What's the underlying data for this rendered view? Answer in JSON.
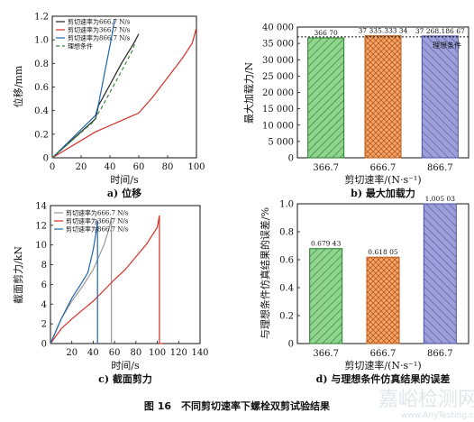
{
  "colors": {
    "blue": "#2166ac",
    "red": "#d73027",
    "black": "#222222",
    "grey": "#999999",
    "green": "#3a8a3a",
    "bar_green": "#8fd48f",
    "bar_orange": "#f5a56b",
    "bar_purple": "#9c9fd8"
  },
  "figure_caption": "图 16　不同剪切速率下螺栓双剪试验结果",
  "watermark": {
    "main": "嘉峪检测网",
    "url": "www.AnyTesting.com"
  },
  "chart_data": [
    {
      "id": "a",
      "type": "line",
      "subtitle": "a) 位移",
      "xlabel": "时间/s",
      "ylabel": "位移/mm",
      "xlim": [
        0,
        100
      ],
      "ylim": [
        0,
        1.2
      ],
      "xticks": [
        "0",
        "20",
        "40",
        "60",
        "80",
        "100"
      ],
      "yticks": [
        "0",
        "0.2",
        "0.4",
        "0.6",
        "0.8",
        "1.0",
        "1.2"
      ],
      "legend": "top-left",
      "series": [
        {
          "name": "剪切速率为666.7 N/s",
          "color": "#222222",
          "dash": "",
          "x": [
            0,
            30,
            32,
            40,
            48,
            56,
            60
          ],
          "y": [
            0,
            0.33,
            0.44,
            0.62,
            0.8,
            0.96,
            1.05
          ]
        },
        {
          "name": "剪切速率为366.7 N/s",
          "color": "#d73027",
          "dash": "",
          "x": [
            0,
            30,
            60,
            70,
            80,
            90,
            97,
            100
          ],
          "y": [
            0,
            0.22,
            0.38,
            0.52,
            0.68,
            0.84,
            0.97,
            1.1
          ]
        },
        {
          "name": "剪切速率为866.7 N/s",
          "color": "#2166ac",
          "dash": "",
          "x": [
            0,
            30,
            32,
            36,
            40,
            42,
            43
          ],
          "y": [
            0,
            0.36,
            0.45,
            0.7,
            0.95,
            1.08,
            1.17
          ]
        },
        {
          "name": "理想条件",
          "color": "#3a8a3a",
          "dash": "4,3",
          "x": [
            0,
            28,
            34,
            42,
            50,
            56,
            58
          ],
          "y": [
            0,
            0.3,
            0.42,
            0.6,
            0.78,
            0.92,
            1.0
          ]
        }
      ]
    },
    {
      "id": "b",
      "type": "bar",
      "subtitle": "b) 最大加载力",
      "xlabel": "剪切速率/(N·s⁻¹)",
      "ylabel": "最大加载力/N",
      "ylim": [
        0,
        40000
      ],
      "yticks": [
        "0",
        "5 000",
        "10 000",
        "15 000",
        "20 000",
        "25 000",
        "30 000",
        "35 000",
        "40 000"
      ],
      "categories": [
        "366.7",
        "666.7",
        "866.7"
      ],
      "values": [
        36670,
        37335.33334,
        37268.18667
      ],
      "data_labels": [
        "366 70",
        "37 335.333 34",
        "37 268.186 67"
      ],
      "reference": {
        "label": "理想条件",
        "value": 37000
      }
    },
    {
      "id": "c",
      "type": "line",
      "subtitle": "c) 截面剪力",
      "xlabel": "时间/s",
      "ylabel": "截面剪力/kN",
      "xlim": [
        0,
        140
      ],
      "ylim": [
        0,
        14
      ],
      "xticks": [
        "20",
        "40",
        "60",
        "80",
        "100",
        "120",
        "140"
      ],
      "yticks": [
        "0",
        "2",
        "4",
        "6",
        "8",
        "10",
        "12",
        "14"
      ],
      "legend": "top-left",
      "series": [
        {
          "name": "剪切速率为666.7 N/s",
          "color": "#999999",
          "dash": "",
          "x": [
            0,
            10,
            20,
            30,
            40,
            50,
            55,
            57,
            57
          ],
          "y": [
            0,
            2.5,
            4.3,
            5.8,
            7.5,
            10,
            11.7,
            12.8,
            0
          ]
        },
        {
          "name": "剪切速率为366.7 N/s",
          "color": "#d73027",
          "dash": "",
          "x": [
            0,
            10,
            20,
            30,
            40,
            50,
            60,
            70,
            80,
            90,
            100,
            102,
            102,
            105
          ],
          "y": [
            0,
            1.5,
            2.5,
            3.4,
            4.3,
            5.4,
            6.5,
            7.5,
            8.8,
            10.1,
            11.8,
            13,
            0,
            0
          ]
        },
        {
          "name": "剪切速率为866.7 N/s",
          "color": "#2166ac",
          "dash": "",
          "x": [
            0,
            10,
            20,
            30,
            35,
            40,
            43,
            44,
            44
          ],
          "y": [
            0,
            2.5,
            4.6,
            6.3,
            7.2,
            9.5,
            11.5,
            12.5,
            0
          ]
        }
      ]
    },
    {
      "id": "d",
      "type": "bar",
      "subtitle": "d) 与理想条件仿真结果的误差",
      "xlabel": "剪切速率/(N·s⁻¹)",
      "ylabel": "与理想条件仿真结果的误差/%",
      "ylim": [
        0,
        1.0
      ],
      "yticks": [
        "0",
        "0.2",
        "0.4",
        "0.6",
        "0.8",
        "1.0"
      ],
      "categories": [
        "366.7",
        "666.7",
        "866.7"
      ],
      "values": [
        0.67943,
        0.61805,
        1.00503
      ],
      "data_labels": [
        "0.679 43",
        "0.618 05",
        "1.005 03"
      ]
    }
  ]
}
